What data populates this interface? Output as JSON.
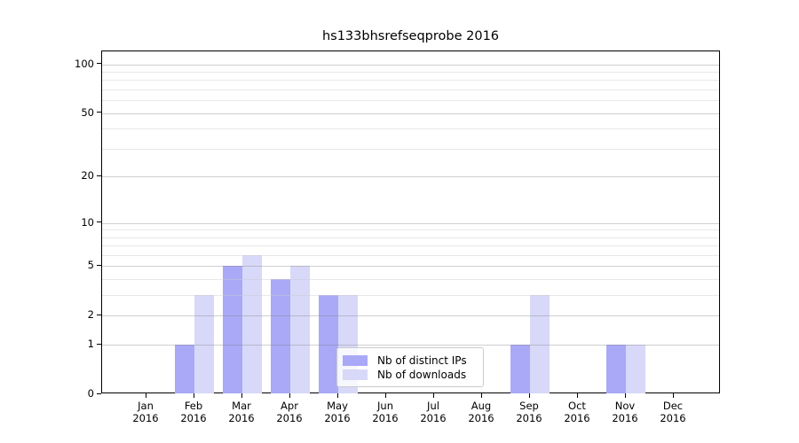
{
  "chart_data": {
    "type": "bar",
    "title": "hs133bhsrefseqprobe 2016",
    "categories": [
      "Jan",
      "Feb",
      "Mar",
      "Apr",
      "May",
      "Jun",
      "Jul",
      "Aug",
      "Sep",
      "Oct",
      "Nov",
      "Dec"
    ],
    "year_label": "2016",
    "series": [
      {
        "name": "Nb of distinct IPs",
        "color": "#a9a9f7",
        "values": [
          0,
          1,
          5,
          4,
          3,
          0,
          0,
          0,
          1,
          0,
          1,
          0
        ]
      },
      {
        "name": "Nb of downloads",
        "color": "#d8d8f9",
        "values": [
          0,
          3,
          6,
          5,
          3,
          0,
          0,
          0,
          3,
          0,
          1,
          0
        ]
      }
    ],
    "yscale": "log1p",
    "ylim": [
      0,
      120
    ],
    "ytick_values": [
      0,
      1,
      2,
      5,
      10,
      20,
      50,
      100
    ],
    "ytick_labels": [
      "0",
      "1",
      "2",
      "5",
      "10",
      "20",
      "50",
      "100"
    ],
    "yminor_values": [
      3,
      4,
      6,
      7,
      8,
      9,
      30,
      40,
      60,
      70,
      80,
      90
    ],
    "grid": "horizontal major+minor",
    "legend_position": "lower center inside plot"
  }
}
